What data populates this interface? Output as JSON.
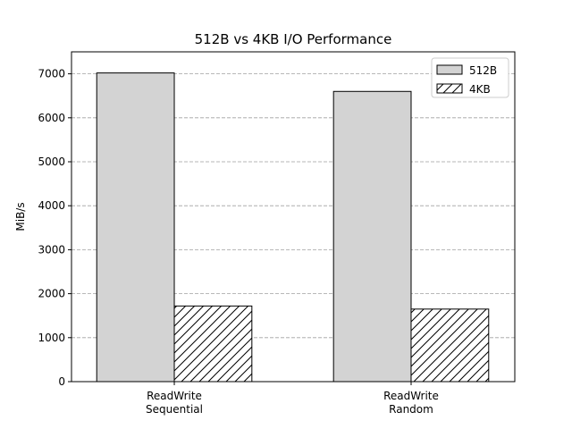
{
  "chart_data": {
    "type": "bar",
    "title": "512B vs 4KB I/O Performance",
    "xlabel": "",
    "ylabel": "MiB/s",
    "categories": [
      [
        "ReadWrite",
        "Sequential"
      ],
      [
        "ReadWrite",
        "Random"
      ]
    ],
    "series": [
      {
        "name": "512B",
        "values": [
          7020,
          6600
        ],
        "color": "#d3d3d3",
        "hatch": "none"
      },
      {
        "name": "4KB",
        "values": [
          1720,
          1650
        ],
        "color": "#ffffff",
        "hatch": "diagonal"
      }
    ],
    "ylim": [
      0,
      7500
    ],
    "yticks": [
      0,
      1000,
      2000,
      3000,
      4000,
      5000,
      6000,
      7000
    ],
    "grid": {
      "y": true,
      "style": "dashed",
      "color": "#a0a0a0"
    },
    "legend": "top-right"
  }
}
